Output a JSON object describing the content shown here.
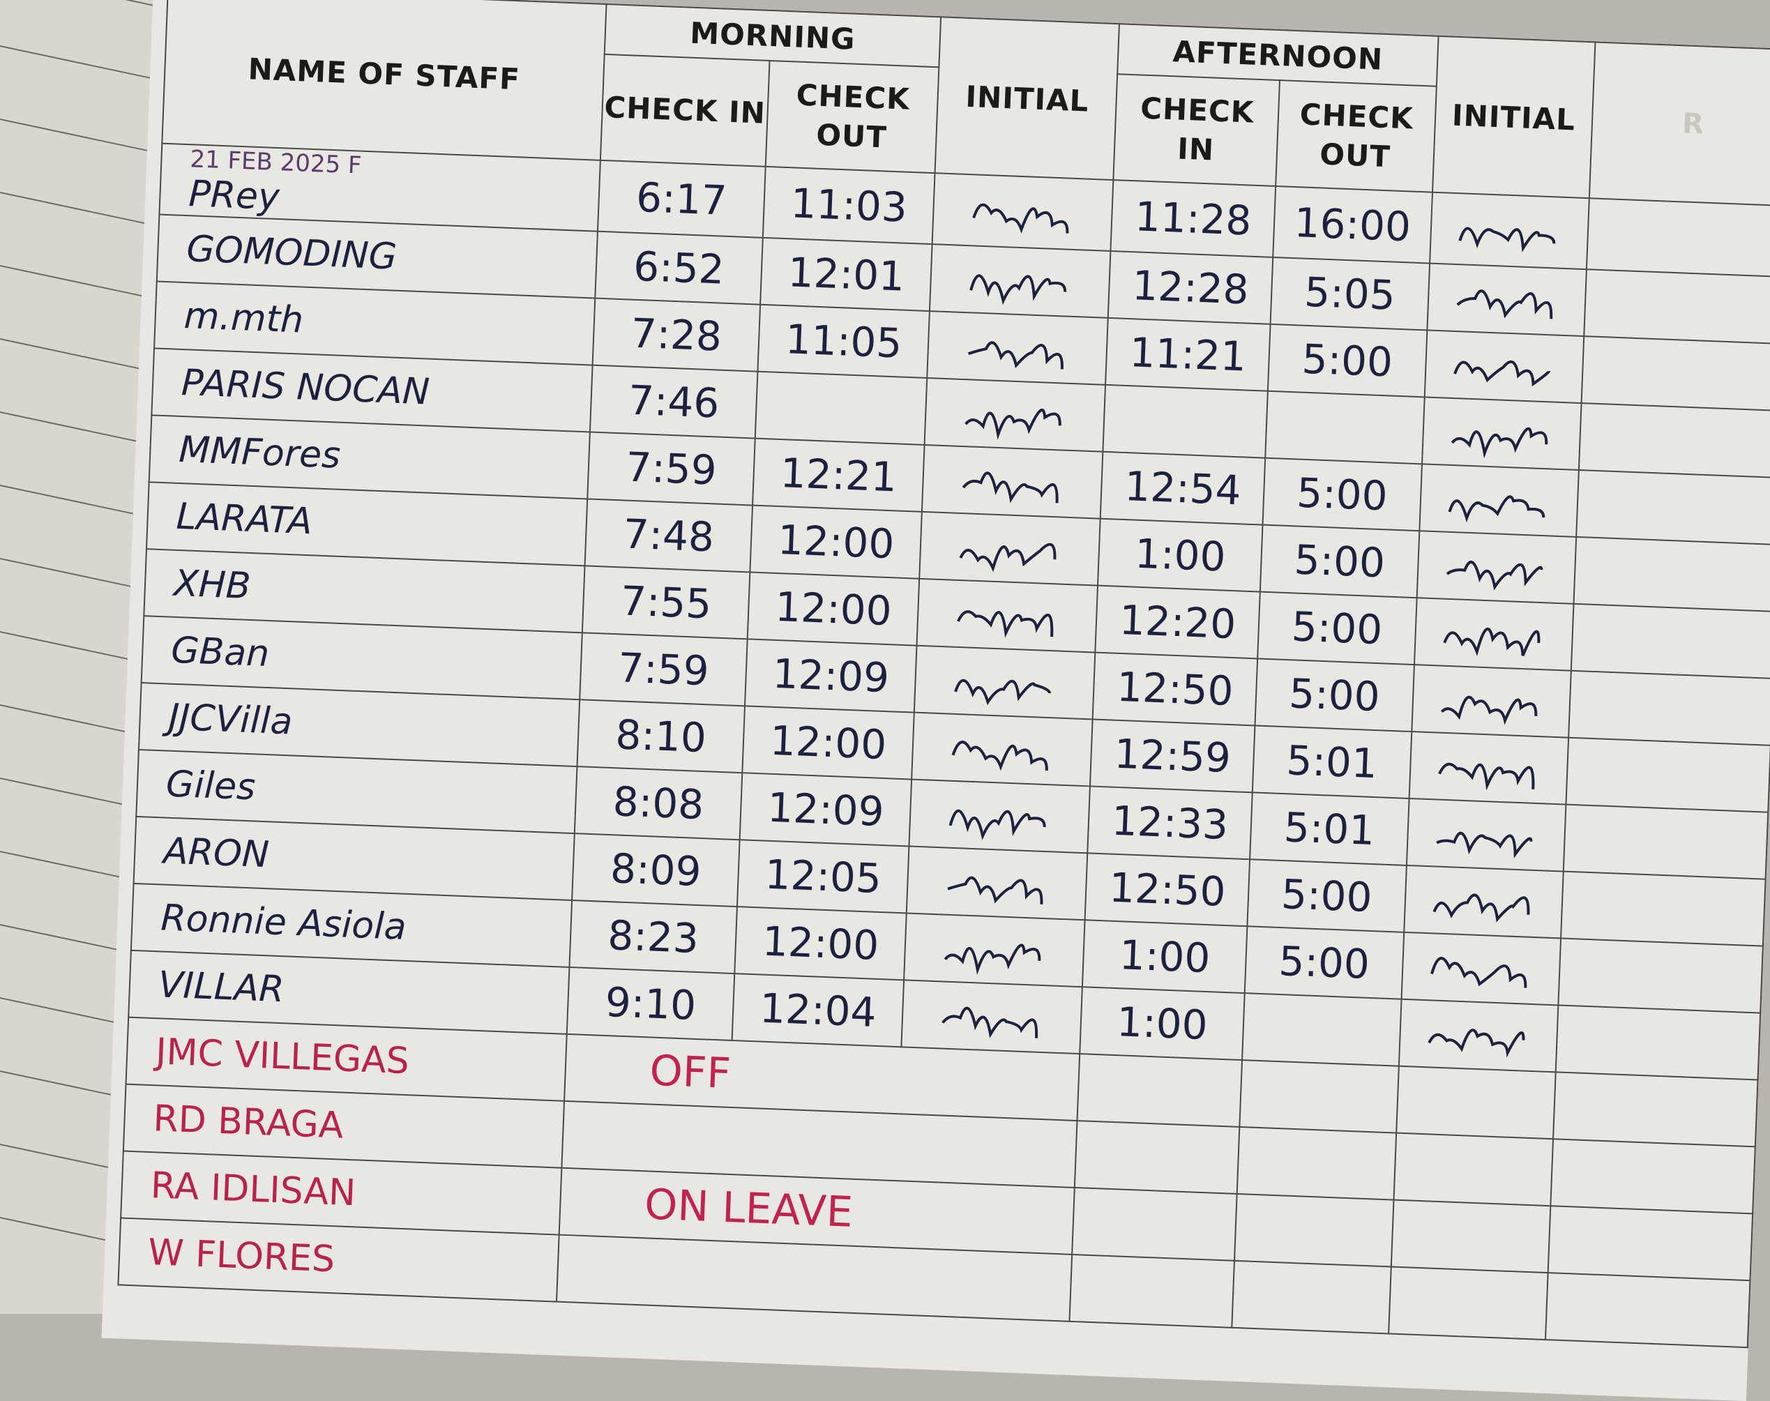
{
  "header": {
    "name_col": "NAME OF STAFF",
    "morning": "MORNING",
    "afternoon": "AFTERNOON",
    "check_in": "CHECK IN",
    "check_out": "CHECK OUT",
    "initial": "INITIAL",
    "cut_off_col": "R"
  },
  "date_note": "21 FEB 2025 F",
  "rows": [
    {
      "name": "PRey",
      "am_in": "6:17",
      "am_out": "11:03",
      "pm_in": "11:28",
      "pm_out": "16:00",
      "signed": true
    },
    {
      "name": "GOMODING",
      "am_in": "6:52",
      "am_out": "12:01",
      "pm_in": "12:28",
      "pm_out": "5:05",
      "signed": true
    },
    {
      "name": "m.mth",
      "am_in": "7:28",
      "am_out": "11:05",
      "pm_in": "11:21",
      "pm_out": "5:00",
      "signed": true
    },
    {
      "name": "PARIS NOCAN",
      "am_in": "7:46",
      "am_out": "",
      "pm_in": "",
      "pm_out": "",
      "signed": true
    },
    {
      "name": "MMFores",
      "am_in": "7:59",
      "am_out": "12:21",
      "pm_in": "12:54",
      "pm_out": "5:00",
      "signed": true
    },
    {
      "name": "LARATA",
      "am_in": "7:48",
      "am_out": "12:00",
      "pm_in": "1:00",
      "pm_out": "5:00",
      "signed": true
    },
    {
      "name": "XHB",
      "am_in": "7:55",
      "am_out": "12:00",
      "pm_in": "12:20",
      "pm_out": "5:00",
      "signed": true
    },
    {
      "name": "GBan",
      "am_in": "7:59",
      "am_out": "12:09",
      "pm_in": "12:50",
      "pm_out": "5:00",
      "signed": true
    },
    {
      "name": "JJCVilla",
      "am_in": "8:10",
      "am_out": "12:00",
      "pm_in": "12:59",
      "pm_out": "5:01",
      "signed": true
    },
    {
      "name": "Giles",
      "am_in": "8:08",
      "am_out": "12:09",
      "pm_in": "12:33",
      "pm_out": "5:01",
      "signed": true
    },
    {
      "name": "ARON",
      "am_in": "8:09",
      "am_out": "12:05",
      "pm_in": "12:50",
      "pm_out": "5:00",
      "signed": true
    },
    {
      "name": "Ronnie Asiola",
      "am_in": "8:23",
      "am_out": "12:00",
      "pm_in": "1:00",
      "pm_out": "5:00",
      "signed": true
    },
    {
      "name": "VILLAR",
      "am_in": "9:10",
      "am_out": "12:04",
      "pm_in": "1:00",
      "pm_out": "",
      "signed": true
    }
  ],
  "absent": [
    {
      "name": "JMC VILLEGAS",
      "note": "OFF"
    },
    {
      "name": "RD BRAGA",
      "note": ""
    },
    {
      "name": "RA IDLISAN",
      "note": "ON LEAVE"
    },
    {
      "name": "W FLORES",
      "note": ""
    }
  ],
  "colors": {
    "ink": "#1d2140",
    "red_ink": "#c0234e",
    "paper": "#e9e7e2",
    "rule": "#4a4846"
  }
}
